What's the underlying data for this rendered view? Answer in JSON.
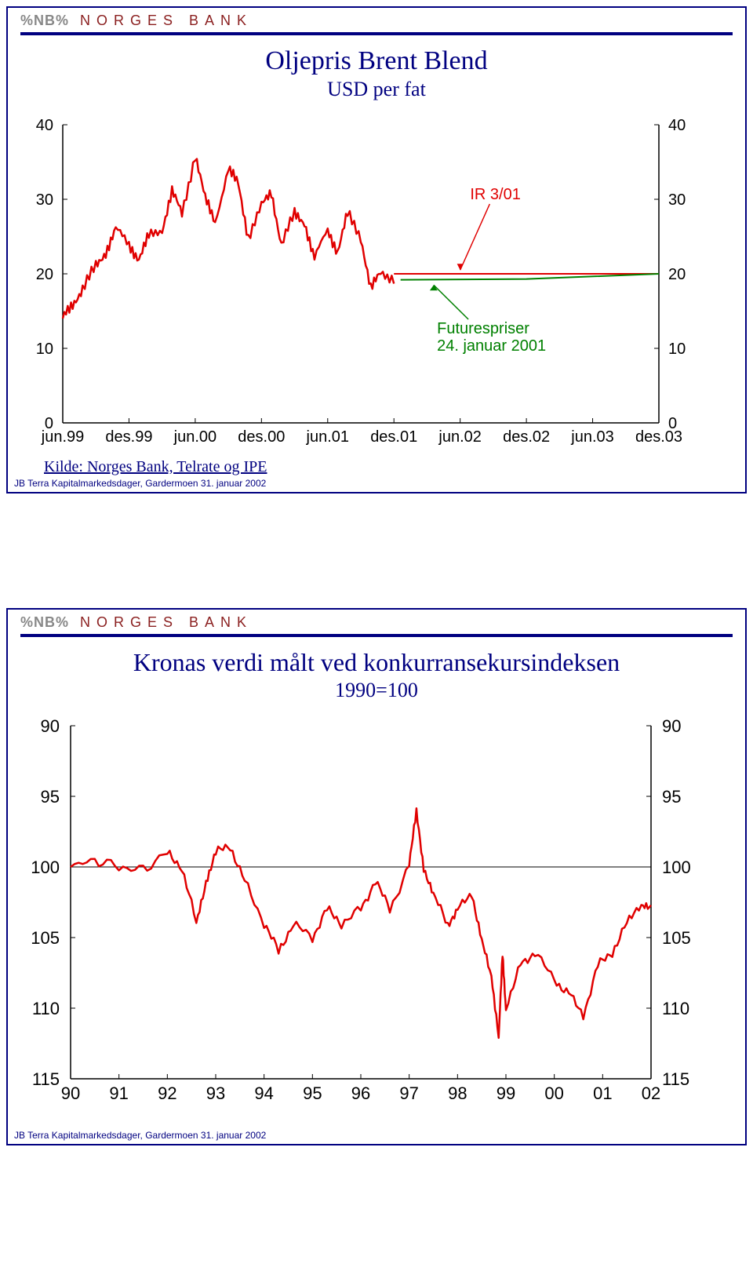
{
  "brand": {
    "logo": "%NB%",
    "name": "NORGES BANK"
  },
  "footer": "JB Terra Kapitalmarkedsdager, Gardermoen 31. januar 2002",
  "chart1": {
    "type": "line",
    "title": "Oljepris Brent Blend",
    "subtitle": "USD per fat",
    "source": "Kilde: Norges Bank, Telrate og IPE",
    "ylim": [
      0,
      40
    ],
    "ytick_step": 10,
    "x_labels": [
      "jun.99",
      "des.99",
      "jun.00",
      "des.00",
      "jun.01",
      "des.01",
      "jun.02",
      "des.02",
      "jun.03",
      "des.03"
    ],
    "annotations": {
      "ir": {
        "text": "IR 3/01",
        "color": "#e00000"
      },
      "futures": {
        "line1": "Futurespriser",
        "line2": "24. januar 2001",
        "color": "#008000"
      }
    },
    "colors": {
      "spot": "#e00000",
      "ir_line": "#e00000",
      "futures_line": "#008000",
      "axes": "#000000",
      "background": "#ffffff"
    },
    "line_width": 2.5,
    "label_fontsize": 20,
    "title_fontsize": 34,
    "subtitle_fontsize": 26,
    "spot_data": [
      [
        0,
        14
      ],
      [
        0.3,
        16
      ],
      [
        0.6,
        18
      ],
      [
        1,
        21
      ],
      [
        1.3,
        23
      ],
      [
        1.6,
        26
      ],
      [
        2,
        24
      ],
      [
        2.3,
        22
      ],
      [
        2.6,
        25
      ],
      [
        3,
        26
      ],
      [
        3.3,
        31
      ],
      [
        3.6,
        28
      ],
      [
        4,
        36
      ],
      [
        4.3,
        30
      ],
      [
        4.6,
        27
      ],
      [
        5,
        34
      ],
      [
        5.3,
        32
      ],
      [
        5.6,
        25
      ],
      [
        6,
        29
      ],
      [
        6.3,
        31
      ],
      [
        6.6,
        24
      ],
      [
        7,
        28
      ],
      [
        7.3,
        27
      ],
      [
        7.6,
        22
      ],
      [
        8,
        26
      ],
      [
        8.3,
        23
      ],
      [
        8.6,
        28
      ],
      [
        9,
        25
      ],
      [
        9.3,
        18
      ],
      [
        9.6,
        20
      ],
      [
        10,
        19.5
      ]
    ],
    "ir_data": [
      [
        10,
        20
      ],
      [
        18,
        20
      ]
    ],
    "futures_data": [
      [
        10.2,
        19.2
      ],
      [
        14,
        19.3
      ],
      [
        18,
        20
      ]
    ]
  },
  "chart2": {
    "type": "line",
    "title": "Kronas verdi målt ved konkurransekursindeksen",
    "subtitle": "1990=100",
    "ylim": [
      115,
      90
    ],
    "ytick_step": 5,
    "x_labels": [
      "90",
      "91",
      "92",
      "93",
      "94",
      "95",
      "96",
      "97",
      "98",
      "99",
      "00",
      "01",
      "02"
    ],
    "colors": {
      "line": "#e00000",
      "axes": "#000000",
      "background": "#ffffff"
    },
    "line_width": 2.5,
    "label_fontsize": 22,
    "title_fontsize": 32,
    "subtitle_fontsize": 26,
    "data": [
      [
        0,
        100
      ],
      [
        0.5,
        99.5
      ],
      [
        1,
        100
      ],
      [
        1.5,
        100.2
      ],
      [
        2,
        99
      ],
      [
        2.3,
        100
      ],
      [
        2.6,
        104
      ],
      [
        2.8,
        101
      ],
      [
        3,
        99
      ],
      [
        3.3,
        98.5
      ],
      [
        3.6,
        101
      ],
      [
        4,
        104
      ],
      [
        4.3,
        106
      ],
      [
        4.6,
        104
      ],
      [
        5,
        105
      ],
      [
        5.3,
        103
      ],
      [
        5.6,
        104
      ],
      [
        6,
        103
      ],
      [
        6.3,
        101
      ],
      [
        6.6,
        103
      ],
      [
        7,
        100
      ],
      [
        7.15,
        96
      ],
      [
        7.3,
        100
      ],
      [
        7.5,
        102
      ],
      [
        7.8,
        104
      ],
      [
        8,
        103
      ],
      [
        8.3,
        102
      ],
      [
        8.5,
        105
      ],
      [
        8.7,
        108
      ],
      [
        8.85,
        112
      ],
      [
        8.93,
        106
      ],
      [
        9,
        110
      ],
      [
        9.3,
        107
      ],
      [
        9.6,
        106
      ],
      [
        10,
        108
      ],
      [
        10.3,
        109
      ],
      [
        10.6,
        110.5
      ],
      [
        10.9,
        107
      ],
      [
        11.2,
        106
      ],
      [
        11.5,
        104
      ],
      [
        11.8,
        102.5
      ],
      [
        12,
        103
      ]
    ]
  }
}
